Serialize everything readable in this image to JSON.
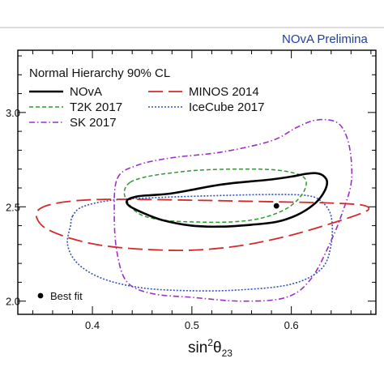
{
  "chart_data": {
    "type": "line",
    "banner": "NOvA Prelimina",
    "banner_color": "#1f3fa0",
    "title": "Normal Hierarchy 90% CL",
    "xlabel": "sin",
    "xlabel_sup": "2",
    "xlabel_theta": "θ",
    "xlabel_sub": "23",
    "xlim": [
      0.325,
      0.685
    ],
    "ylim": [
      1.93,
      3.33
    ],
    "x_ticks": [
      {
        "value": 0.4,
        "label": "0.4"
      },
      {
        "value": 0.5,
        "label": "0.5"
      },
      {
        "value": 0.6,
        "label": "0.6"
      }
    ],
    "y_ticks": [
      {
        "value": 2.0,
        "label": "2.0"
      },
      {
        "value": 2.5,
        "label": "2.5"
      },
      {
        "value": 3.0,
        "label": "3.0"
      }
    ],
    "legend": {
      "placement": "top-left"
    },
    "best_fit_label": "Best fit",
    "series": [
      {
        "name": "NOvA",
        "color": "#000000",
        "style": "solid",
        "width": 2.6,
        "points": [
          [
            0.435,
            2.535
          ],
          [
            0.445,
            2.555
          ],
          [
            0.46,
            2.562
          ],
          [
            0.478,
            2.57
          ],
          [
            0.5,
            2.59
          ],
          [
            0.52,
            2.61
          ],
          [
            0.54,
            2.625
          ],
          [
            0.56,
            2.635
          ],
          [
            0.58,
            2.645
          ],
          [
            0.6,
            2.66
          ],
          [
            0.615,
            2.675
          ],
          [
            0.625,
            2.678
          ],
          [
            0.632,
            2.665
          ],
          [
            0.636,
            2.63
          ],
          [
            0.632,
            2.57
          ],
          [
            0.622,
            2.51
          ],
          [
            0.605,
            2.455
          ],
          [
            0.585,
            2.42
          ],
          [
            0.56,
            2.405
          ],
          [
            0.53,
            2.395
          ],
          [
            0.5,
            2.4
          ],
          [
            0.47,
            2.43
          ],
          [
            0.45,
            2.47
          ],
          [
            0.437,
            2.505
          ],
          [
            0.435,
            2.535
          ]
        ]
      },
      {
        "name": "MINOS 2014",
        "color": "#d42a2a",
        "style": "longdash",
        "width": 1.8,
        "points": [
          [
            0.345,
            2.48
          ],
          [
            0.36,
            2.515
          ],
          [
            0.39,
            2.535
          ],
          [
            0.43,
            2.54
          ],
          [
            0.5,
            2.535
          ],
          [
            0.55,
            2.53
          ],
          [
            0.6,
            2.525
          ],
          [
            0.64,
            2.52
          ],
          [
            0.67,
            2.51
          ],
          [
            0.678,
            2.49
          ],
          [
            0.67,
            2.465
          ],
          [
            0.645,
            2.42
          ],
          [
            0.6,
            2.35
          ],
          [
            0.55,
            2.295
          ],
          [
            0.5,
            2.27
          ],
          [
            0.45,
            2.275
          ],
          [
            0.41,
            2.295
          ],
          [
            0.38,
            2.33
          ],
          [
            0.355,
            2.38
          ],
          [
            0.345,
            2.43
          ],
          [
            0.345,
            2.48
          ]
        ]
      },
      {
        "name": "T2K 2017",
        "color": "#2e9a2e",
        "style": "dash",
        "width": 1.5,
        "points": [
          [
            0.438,
            2.63
          ],
          [
            0.455,
            2.66
          ],
          [
            0.48,
            2.68
          ],
          [
            0.51,
            2.695
          ],
          [
            0.55,
            2.7
          ],
          [
            0.585,
            2.695
          ],
          [
            0.608,
            2.67
          ],
          [
            0.615,
            2.63
          ],
          [
            0.61,
            2.56
          ],
          [
            0.595,
            2.49
          ],
          [
            0.57,
            2.44
          ],
          [
            0.54,
            2.42
          ],
          [
            0.5,
            2.42
          ],
          [
            0.47,
            2.43
          ],
          [
            0.448,
            2.46
          ],
          [
            0.436,
            2.52
          ],
          [
            0.432,
            2.58
          ],
          [
            0.438,
            2.63
          ]
        ]
      },
      {
        "name": "IceCube 2017",
        "color": "#3050c0",
        "style": "dot",
        "width": 1.6,
        "points": [
          [
            0.38,
            2.45
          ],
          [
            0.39,
            2.5
          ],
          [
            0.42,
            2.535
          ],
          [
            0.47,
            2.55
          ],
          [
            0.53,
            2.56
          ],
          [
            0.58,
            2.565
          ],
          [
            0.615,
            2.56
          ],
          [
            0.63,
            2.53
          ],
          [
            0.64,
            2.45
          ],
          [
            0.64,
            2.3
          ],
          [
            0.63,
            2.17
          ],
          [
            0.6,
            2.09
          ],
          [
            0.55,
            2.06
          ],
          [
            0.5,
            2.055
          ],
          [
            0.45,
            2.07
          ],
          [
            0.41,
            2.12
          ],
          [
            0.385,
            2.2
          ],
          [
            0.375,
            2.3
          ],
          [
            0.378,
            2.4
          ],
          [
            0.38,
            2.45
          ]
        ]
      },
      {
        "name": "SK 2017",
        "color": "#9b30c8",
        "style": "dashdot",
        "width": 1.6,
        "points": [
          [
            0.425,
            2.65
          ],
          [
            0.445,
            2.72
          ],
          [
            0.48,
            2.76
          ],
          [
            0.53,
            2.79
          ],
          [
            0.58,
            2.85
          ],
          [
            0.605,
            2.92
          ],
          [
            0.625,
            2.96
          ],
          [
            0.645,
            2.95
          ],
          [
            0.655,
            2.88
          ],
          [
            0.66,
            2.76
          ],
          [
            0.66,
            2.62
          ],
          [
            0.652,
            2.48
          ],
          [
            0.64,
            2.32
          ],
          [
            0.62,
            2.12
          ],
          [
            0.595,
            2.02
          ],
          [
            0.55,
            2.0
          ],
          [
            0.5,
            2.02
          ],
          [
            0.46,
            2.04
          ],
          [
            0.435,
            2.1
          ],
          [
            0.425,
            2.25
          ],
          [
            0.422,
            2.45
          ],
          [
            0.425,
            2.65
          ]
        ]
      }
    ],
    "best_fit": {
      "x": 0.585,
      "y": 2.505
    }
  }
}
